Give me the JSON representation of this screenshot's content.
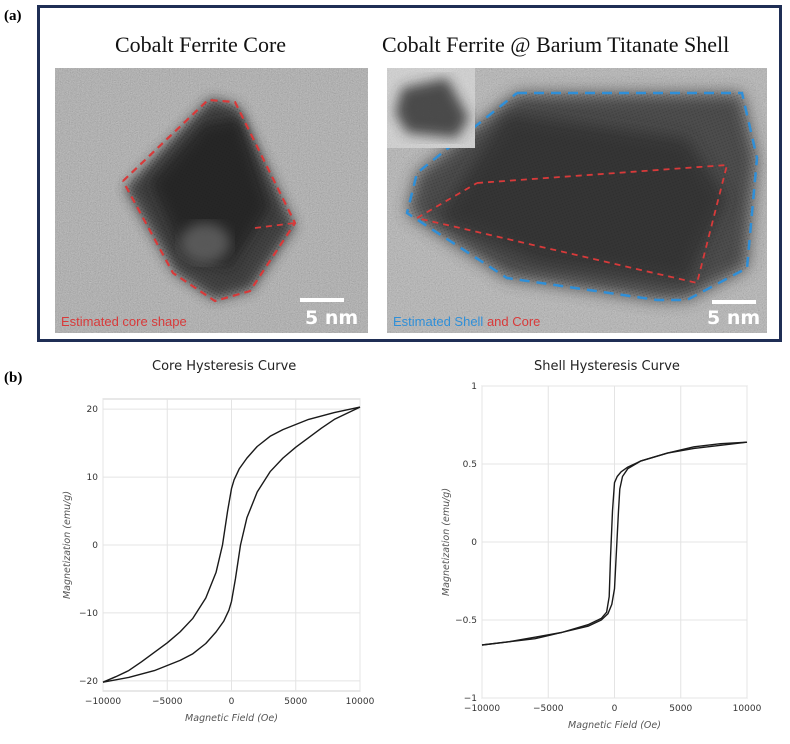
{
  "panel_a": {
    "label": "(a)",
    "left": {
      "title": "Cobalt Ferrite Core",
      "overlay_label": "Estimated core shape",
      "scale_bar": "5 nm"
    },
    "right": {
      "title": "Cobalt Ferrite @ Barium Titanate Shell",
      "overlay_label_part1": "Estimated Shell ",
      "overlay_label_part2": "and Core",
      "scale_bar": "5 nm"
    },
    "colors": {
      "core_outline": "#d83a3a",
      "shell_outline": "#2f8fd8",
      "frame": "#1f2e55"
    }
  },
  "panel_b": {
    "label": "(b)"
  },
  "chart_data": [
    {
      "type": "line",
      "title": "Core Hysteresis Curve",
      "xlabel": "Magnetic Field (Oe)",
      "ylabel": "Magnetization (emu/g)",
      "xlim": [
        -10000,
        10000
      ],
      "ylim": [
        -21.5,
        21.5
      ],
      "xticks": [
        -10000,
        -5000,
        0,
        5000,
        10000
      ],
      "xtick_labels": [
        "−10000",
        "−5000",
        "0",
        "5000",
        "10000"
      ],
      "yticks": [
        -20,
        -10,
        0,
        10,
        20
      ],
      "ytick_labels": [
        "−20",
        "−10",
        "0",
        "10",
        "20"
      ],
      "grid": true,
      "series": [
        {
          "x": [
            10000,
            8000,
            6000,
            4000,
            3000,
            2000,
            1200,
            600,
            200,
            0,
            -300,
            -700,
            -1200,
            -2000,
            -3000,
            -4000,
            -5000,
            -6000,
            -7000,
            -8000,
            -9000,
            -10000
          ],
          "y": [
            20.3,
            19.5,
            18.5,
            17.0,
            16.0,
            14.5,
            12.8,
            11.2,
            9.6,
            8.3,
            5.0,
            0.0,
            -4.0,
            -7.8,
            -10.8,
            -12.8,
            -14.4,
            -15.8,
            -17.2,
            -18.5,
            -19.4,
            -20.2
          ]
        },
        {
          "x": [
            -10000,
            -8000,
            -6000,
            -4000,
            -3000,
            -2000,
            -1200,
            -600,
            -200,
            0,
            300,
            700,
            1200,
            2000,
            3000,
            4000,
            5000,
            6000,
            7000,
            8000,
            9000,
            10000
          ],
          "y": [
            -20.2,
            -19.5,
            -18.5,
            -17.0,
            -16.0,
            -14.5,
            -12.8,
            -11.2,
            -9.6,
            -8.3,
            -5.0,
            0.0,
            4.0,
            7.8,
            10.8,
            12.8,
            14.4,
            15.8,
            17.2,
            18.5,
            19.4,
            20.3
          ]
        }
      ]
    },
    {
      "type": "line",
      "title": "Shell Hysteresis Curve",
      "xlabel": "Magnetic Field (Oe)",
      "ylabel": "Magnetization (emu/g)",
      "xlim": [
        -10000,
        10000
      ],
      "ylim": [
        -1,
        1
      ],
      "xticks": [
        -10000,
        -5000,
        0,
        5000,
        10000
      ],
      "xtick_labels": [
        "−10000",
        "−5000",
        "0",
        "5000",
        "10000"
      ],
      "yticks": [
        -1,
        -0.5,
        0,
        0.5,
        1
      ],
      "ytick_labels": [
        "−1",
        "−0.5",
        "0",
        "0.5",
        "1"
      ],
      "grid": true,
      "series": [
        {
          "x": [
            10000,
            8000,
            6000,
            4000,
            2000,
            1000,
            500,
            200,
            0,
            -150,
            -300,
            -400,
            -600,
            -1000,
            -2000,
            -4000,
            -6000,
            -8000,
            -10000
          ],
          "y": [
            0.64,
            0.62,
            0.6,
            0.57,
            0.52,
            0.48,
            0.45,
            0.42,
            0.38,
            0.2,
            -0.1,
            -0.35,
            -0.45,
            -0.49,
            -0.53,
            -0.58,
            -0.62,
            -0.64,
            -0.66
          ]
        },
        {
          "x": [
            -10000,
            -8000,
            -6000,
            -4000,
            -2000,
            -1000,
            -500,
            -200,
            0,
            150,
            300,
            400,
            600,
            1000,
            2000,
            4000,
            6000,
            8000,
            10000
          ],
          "y": [
            -0.66,
            -0.64,
            -0.61,
            -0.58,
            -0.54,
            -0.5,
            -0.46,
            -0.4,
            -0.3,
            -0.05,
            0.2,
            0.34,
            0.42,
            0.47,
            0.52,
            0.57,
            0.61,
            0.63,
            0.64
          ]
        }
      ]
    }
  ]
}
